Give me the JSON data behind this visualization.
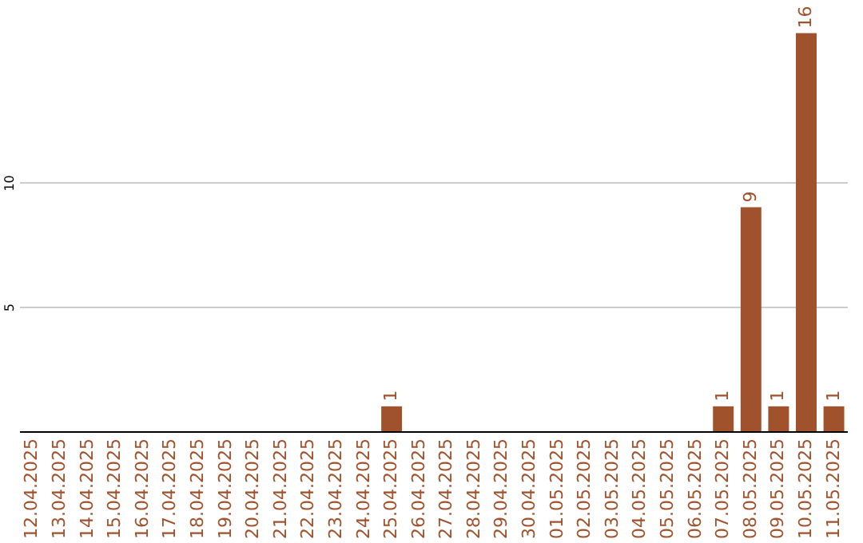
{
  "chart_data": {
    "type": "bar",
    "categories": [
      "12.04.2025",
      "13.04.2025",
      "14.04.2025",
      "15.04.2025",
      "16.04.2025",
      "17.04.2025",
      "18.04.2025",
      "19.04.2025",
      "20.04.2025",
      "21.04.2025",
      "22.04.2025",
      "23.04.2025",
      "24.04.2025",
      "25.04.2025",
      "26.04.2025",
      "27.04.2025",
      "28.04.2025",
      "29.04.2025",
      "30.04.2025",
      "01.05.2025",
      "02.05.2025",
      "03.05.2025",
      "04.05.2025",
      "05.05.2025",
      "06.05.2025",
      "07.05.2025",
      "08.05.2025",
      "09.05.2025",
      "10.05.2025",
      "11.05.2025"
    ],
    "values": [
      0,
      0,
      0,
      0,
      0,
      0,
      0,
      0,
      0,
      0,
      0,
      0,
      0,
      1,
      0,
      0,
      0,
      0,
      0,
      0,
      0,
      0,
      0,
      0,
      0,
      1,
      9,
      1,
      16,
      1
    ],
    "value_labels": [
      null,
      null,
      null,
      null,
      null,
      null,
      null,
      null,
      null,
      null,
      null,
      null,
      null,
      "1",
      null,
      null,
      null,
      null,
      null,
      null,
      null,
      null,
      null,
      null,
      null,
      "1",
      "9",
      "1",
      "16",
      "1"
    ],
    "color": "#a0522d",
    "ylim": [
      0,
      17.2
    ],
    "yticks": [
      5,
      10
    ],
    "grid": "y"
  }
}
